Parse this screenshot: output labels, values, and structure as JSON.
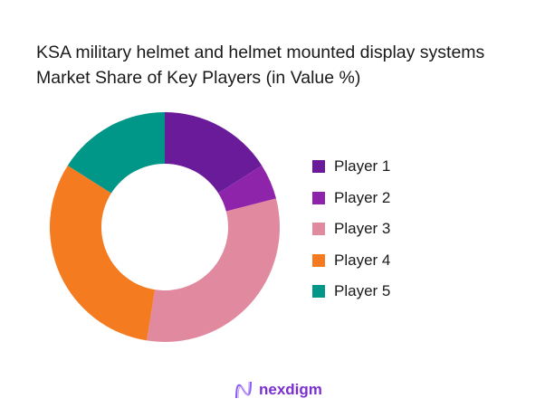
{
  "chart_data": {
    "type": "pie",
    "donut": true,
    "title": "KSA military helmet and helmet mounted display systems Market Share of Key Players (in Value %)",
    "categories": [
      "Player 1",
      "Player 2",
      "Player 3",
      "Player 4",
      "Player 5"
    ],
    "values": [
      16,
      5,
      31.5,
      31.5,
      16
    ],
    "colors": [
      "#6A1B9A",
      "#8E24AA",
      "#E0899F",
      "#F47B20",
      "#009688"
    ],
    "legend_position": "right"
  },
  "brand": {
    "name": "nexdigm"
  }
}
